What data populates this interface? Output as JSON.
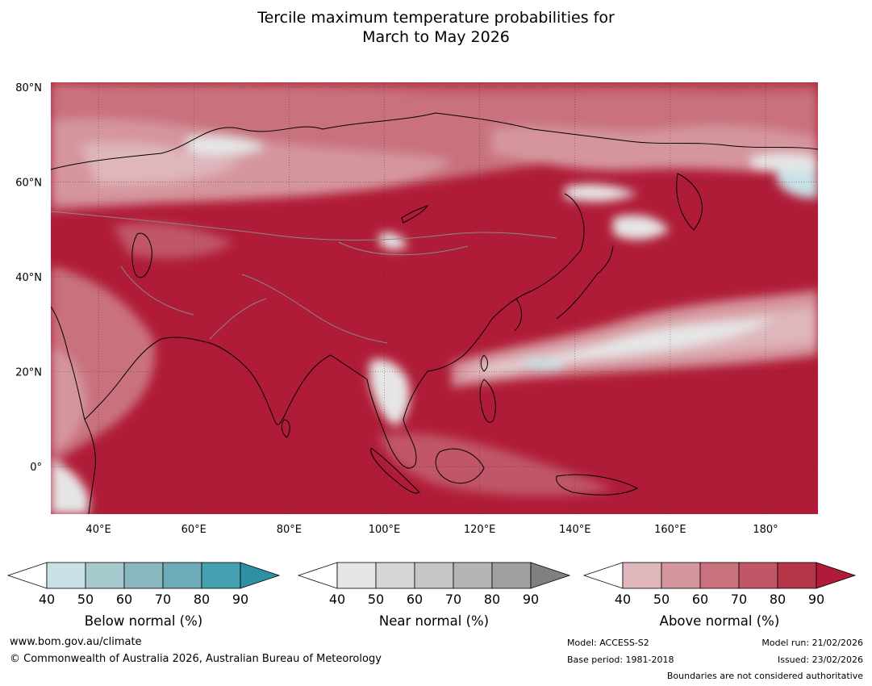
{
  "title": {
    "line1": "Tercile maximum temperature probabilities for",
    "line2": "March to May 2026"
  },
  "map": {
    "projection": "equirectangular",
    "lon_range": [
      30,
      191
    ],
    "lat_range": [
      -10,
      81
    ],
    "lat_ticks": [
      {
        "value": 80,
        "label": "80°N"
      },
      {
        "value": 60,
        "label": "60°N"
      },
      {
        "value": 40,
        "label": "40°N"
      },
      {
        "value": 20,
        "label": "20°N"
      },
      {
        "value": 0,
        "label": "0°"
      }
    ],
    "lon_ticks": [
      {
        "value": 40,
        "label": "40°E"
      },
      {
        "value": 60,
        "label": "60°E"
      },
      {
        "value": 80,
        "label": "80°E"
      },
      {
        "value": 100,
        "label": "100°E"
      },
      {
        "value": 120,
        "label": "120°E"
      },
      {
        "value": 140,
        "label": "140°E"
      },
      {
        "value": 160,
        "label": "160°E"
      },
      {
        "value": 180,
        "label": "180°"
      }
    ],
    "dominant_category": "Above normal",
    "regions": [
      {
        "desc": "equatorial Indian Ocean and Western Pacific",
        "category": "above",
        "level": 90
      },
      {
        "desc": "central Asia and China",
        "category": "above",
        "level": 90
      },
      {
        "desc": "northern Pacific",
        "category": "above",
        "level": 90
      },
      {
        "desc": "Siberia",
        "category": "above",
        "level": 60
      },
      {
        "desc": "subtropical North Pacific band",
        "category": "near",
        "level": 50
      },
      {
        "desc": "Indochina",
        "category": "near",
        "level": 40
      },
      {
        "desc": "Bering Sea edge",
        "category": "below",
        "level": 40
      }
    ]
  },
  "colorbars": [
    {
      "key": "below",
      "label": "Below normal (%)",
      "ticks": [
        "40",
        "50",
        "60",
        "70",
        "80",
        "90"
      ],
      "colors": [
        "#ffffff",
        "#c8e1e6",
        "#a6c9cd",
        "#89b7be",
        "#6dabb8",
        "#45a0b0",
        "#2f8fa3"
      ]
    },
    {
      "key": "near",
      "label": "Near normal (%)",
      "ticks": [
        "40",
        "50",
        "60",
        "70",
        "80",
        "90"
      ],
      "colors": [
        "#ffffff",
        "#e6e6e6",
        "#d6d6d6",
        "#c6c6c6",
        "#b4b4b4",
        "#a0a0a0",
        "#808080"
      ]
    },
    {
      "key": "above",
      "label": "Above normal (%)",
      "ticks": [
        "40",
        "50",
        "60",
        "70",
        "80",
        "90"
      ],
      "colors": [
        "#ffffff",
        "#dfb6bc",
        "#d5959d",
        "#c9727e",
        "#c05667",
        "#b53549",
        "#b01c37"
      ]
    }
  ],
  "footer": {
    "website": "www.bom.gov.au/climate",
    "copyright": "© Commonwealth of Australia 2026, Australian Bureau of Meteorology",
    "model": "Model: ACCESS-S2",
    "base_period": "Base period: 1981-2018",
    "model_run": "Model run: 21/02/2026",
    "issued": "Issued: 23/02/2026",
    "disclaimer": "Boundaries are not considered authoritative"
  }
}
